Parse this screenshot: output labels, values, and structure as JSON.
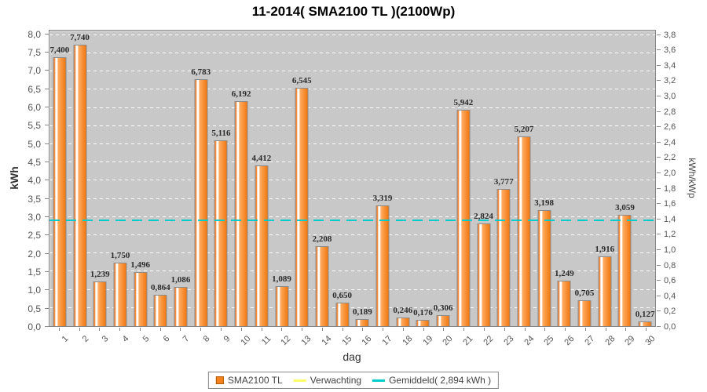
{
  "title": "11-2014( SMA2100 TL )(2100Wp)",
  "chart_data": {
    "type": "bar",
    "title": "11-2014( SMA2100 TL )(2100Wp)",
    "xlabel": "dag",
    "ylabel_left": "kWh",
    "ylabel_right": "kWh/kWp",
    "ylim_left": [
      0.0,
      8.0
    ],
    "ytick_step_left": 0.5,
    "ylim_right": [
      0.0,
      3.8
    ],
    "ytick_step_right": 0.2,
    "kwp_factor": 2.1,
    "grid": true,
    "legend_position": "bottom",
    "categories": [
      1,
      2,
      3,
      4,
      5,
      6,
      7,
      8,
      9,
      10,
      11,
      12,
      13,
      14,
      15,
      16,
      17,
      18,
      19,
      20,
      21,
      22,
      23,
      24,
      25,
      26,
      27,
      28,
      29,
      30
    ],
    "series": [
      {
        "name": "SMA2100 TL",
        "color": "#F5821F",
        "values": [
          7.4,
          7.74,
          1.239,
          1.75,
          1.496,
          0.864,
          1.086,
          6.783,
          5.116,
          6.192,
          4.412,
          1.089,
          6.545,
          2.208,
          0.65,
          0.189,
          3.319,
          0.246,
          0.176,
          0.306,
          5.942,
          2.824,
          3.777,
          5.207,
          3.198,
          1.249,
          0.705,
          1.916,
          3.059,
          0.127
        ]
      }
    ],
    "average_line": {
      "label": "Gemiddeld( 2,894 kWh )",
      "value": 2.894,
      "color": "#00CCCC"
    },
    "expected_series": {
      "label": "Verwachting",
      "color": "#FFFF66"
    }
  },
  "legend": {
    "items": [
      {
        "label": "SMA2100 TL",
        "swatch": "square",
        "color": "#F5821F"
      },
      {
        "label": "Verwachting",
        "swatch": "line",
        "color": "#FFFF66"
      },
      {
        "label": "Gemiddeld( 2,894 kWh )",
        "swatch": "line",
        "color": "#00CCCC"
      }
    ]
  },
  "colors": {
    "plot_background": "#C8C8C8",
    "gridline": "#FFFFFF",
    "bar_border": "#8C8C8C",
    "bar_orange": "#F5821F",
    "average": "#00CCCC",
    "axis_text": "#555555"
  }
}
